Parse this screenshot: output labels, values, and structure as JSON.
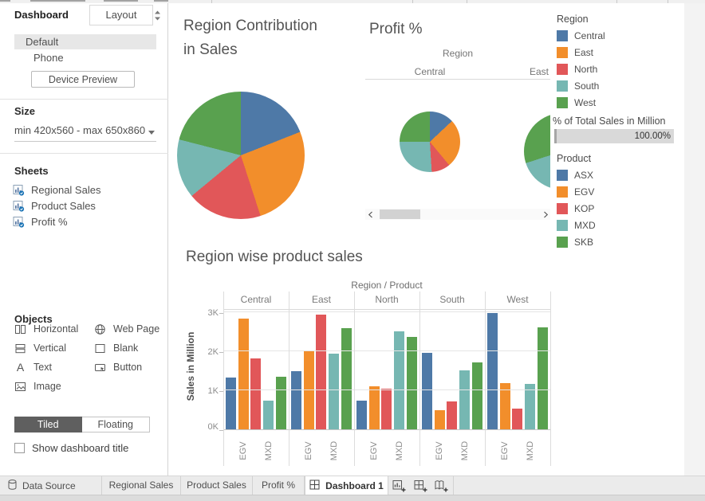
{
  "left_panel": {
    "tabs": {
      "dashboard": "Dashboard",
      "layout": "Layout"
    },
    "selected_device": "Default",
    "device_list": [
      "Default",
      "Phone"
    ],
    "device_preview_label": "Device Preview",
    "size": {
      "header": "Size",
      "value": "min 420x560 - max 650x860"
    },
    "sheets": {
      "header": "Sheets",
      "items": [
        "Regional Sales",
        "Product Sales",
        "Profit %"
      ]
    },
    "objects": {
      "header": "Objects",
      "items": [
        {
          "label": "Horizontal",
          "icon": "horizontal-layout-icon"
        },
        {
          "label": "Vertical",
          "icon": "vertical-layout-icon"
        },
        {
          "label": "Text",
          "icon": "text-icon"
        },
        {
          "label": "Image",
          "icon": "image-icon"
        },
        {
          "label": "Web Page",
          "icon": "web-page-icon"
        },
        {
          "label": "Blank",
          "icon": "blank-icon"
        },
        {
          "label": "Button",
          "icon": "button-icon"
        }
      ]
    },
    "tiled_label": "Tiled",
    "floating_label": "Floating",
    "show_title_label": "Show dashboard title",
    "show_title_checked": false
  },
  "dashboard": {
    "pie_title": "Region Contribution in Sales",
    "profit": {
      "title": "Profit %",
      "header": "Region",
      "columns": [
        "Central",
        "East"
      ]
    },
    "bar": {
      "title": "Region wise product sales",
      "header": "Region / Product"
    }
  },
  "legends": {
    "region": {
      "title": "Region",
      "items": [
        {
          "label": "Central",
          "color": "#4e79a7"
        },
        {
          "label": "East",
          "color": "#f28e2b"
        },
        {
          "label": "North",
          "color": "#e15759"
        },
        {
          "label": "South",
          "color": "#76b7b2"
        },
        {
          "label": "West",
          "color": "#59a14f"
        }
      ]
    },
    "total_sales": {
      "title": "% of Total Sales in Million",
      "value": "100.00%"
    },
    "product": {
      "title": "Product",
      "items": [
        {
          "label": "ASX",
          "color": "#4e79a7"
        },
        {
          "label": "EGV",
          "color": "#f28e2b"
        },
        {
          "label": "KOP",
          "color": "#e15759"
        },
        {
          "label": "MXD",
          "color": "#76b7b2"
        },
        {
          "label": "SKB",
          "color": "#59a14f"
        }
      ]
    }
  },
  "chart_data": [
    {
      "id": "region-contribution-pie",
      "type": "pie",
      "title": "Region Contribution in Sales",
      "categories": [
        "Central",
        "East",
        "North",
        "South",
        "West"
      ],
      "values": [
        19,
        26,
        19,
        15,
        21
      ],
      "unit": "percent of total sales (estimated from slice angles)",
      "colors": [
        "#4e79a7",
        "#f28e2b",
        "#e15759",
        "#76b7b2",
        "#59a14f"
      ]
    },
    {
      "id": "profit-pct-small-multiples",
      "type": "pie",
      "title": "Profit %",
      "facet_field": "Region",
      "slice_field": "Product",
      "categories": [
        "ASX",
        "EGV",
        "KOP",
        "MXD",
        "SKB"
      ],
      "colors": [
        "#4e79a7",
        "#f28e2b",
        "#e15759",
        "#76b7b2",
        "#59a14f"
      ],
      "facets": [
        {
          "name": "Central",
          "values": [
            13,
            26,
            10,
            26,
            25
          ]
        },
        {
          "name": "East",
          "values": [
            11,
            25,
            6,
            28,
            30
          ],
          "partially_visible": true
        }
      ]
    },
    {
      "id": "region-wise-product-sales",
      "type": "bar",
      "title": "Region wise product sales",
      "xlabel": "Region / Product",
      "ylabel": "Sales in Million",
      "ylim": [
        0,
        3.1
      ],
      "yticks": [
        "0K",
        "1K",
        "2K",
        "3K"
      ],
      "grid": true,
      "categories": [
        "Central",
        "East",
        "North",
        "South",
        "West"
      ],
      "series": [
        {
          "name": "ASX",
          "color": "#4e79a7",
          "values": [
            1.33,
            1.48,
            0.74,
            1.96,
            2.98
          ]
        },
        {
          "name": "EGV",
          "color": "#f28e2b",
          "values": [
            2.83,
            2.02,
            1.1,
            0.48,
            1.18
          ]
        },
        {
          "name": "KOP",
          "color": "#e15759",
          "values": [
            1.82,
            2.94,
            1.04,
            0.72,
            0.54
          ]
        },
        {
          "name": "MXD",
          "color": "#76b7b2",
          "values": [
            0.73,
            1.93,
            2.5,
            1.52,
            1.16
          ]
        },
        {
          "name": "SKB",
          "color": "#59a14f",
          "values": [
            1.35,
            2.6,
            2.36,
            1.72,
            2.62
          ]
        }
      ],
      "x_tick_labels_shown": [
        "EGV",
        "MXD"
      ]
    }
  ],
  "bottom_bar": {
    "data_source_label": "Data Source",
    "sheet_tabs": [
      "Regional Sales",
      "Product Sales",
      "Profit %"
    ],
    "active_tab": {
      "label": "Dashboard 1",
      "icon": "dashboard-grid-icon"
    },
    "new_buttons": [
      "new-worksheet-icon",
      "new-dashboard-icon",
      "new-story-icon"
    ]
  }
}
